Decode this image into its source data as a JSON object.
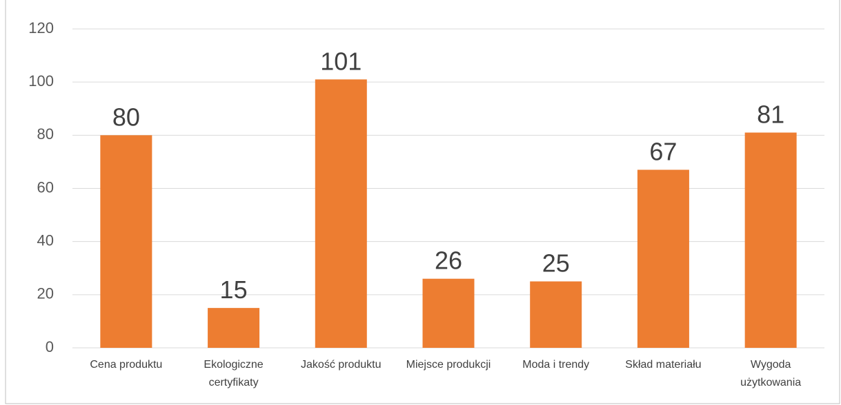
{
  "chart_data": {
    "type": "bar",
    "categories": [
      "Cena produktu",
      "Ekologiczne certyfikaty",
      "Jakość produktu",
      "Miejsce produkcji",
      "Moda i trendy",
      "Skład materiału",
      "Wygoda użytkowania"
    ],
    "values": [
      80,
      15,
      101,
      26,
      25,
      67,
      81
    ],
    "color": "#ed7d31",
    "ylim": [
      0,
      120
    ],
    "yticks": [
      0,
      20,
      40,
      60,
      80,
      100,
      120
    ],
    "grid": true
  }
}
